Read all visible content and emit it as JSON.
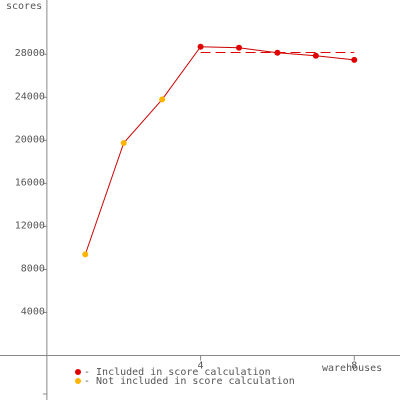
{
  "chart_data": {
    "type": "line",
    "y_label": "scores",
    "x_label": "warehouses",
    "series": [
      {
        "name": "- Included in score calculation",
        "color": "#e00000",
        "x": [
          4,
          5,
          6,
          7,
          8
        ],
        "values": [
          28700,
          28600,
          28140,
          27860,
          27480
        ]
      },
      {
        "name": "- Not included in score calculation",
        "color": "#ffb400",
        "x": [
          1,
          2,
          3
        ],
        "values": [
          9400,
          19750,
          23800
        ]
      }
    ],
    "line_color": "#cc0000",
    "reference_line": {
      "value": 28160,
      "color": "#e00000"
    },
    "xlim": [
      -1.22,
      9.19
    ],
    "ylim": [
      -4130,
      33040
    ],
    "xticks": [
      4,
      8
    ],
    "yticks": [
      4000,
      8000,
      12000,
      16000,
      20000,
      24000,
      28000
    ]
  }
}
